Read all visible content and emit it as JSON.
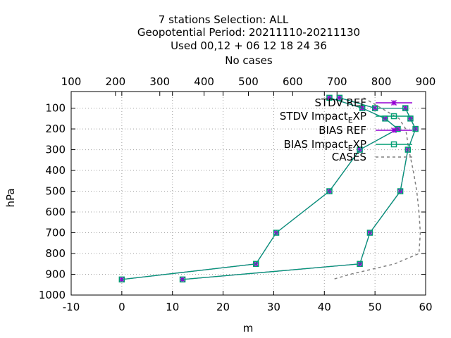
{
  "chart_data": {
    "type": "line",
    "title_lines": [
      "7 stations Selection: ALL",
      "Geopotential  Period: 20211110-20211130",
      "Used  00,12  + 06 12 18 24 36",
      "No cases"
    ],
    "xlabel": "m",
    "ylabel": "hPa",
    "xlim": [
      -10,
      60
    ],
    "ylim": [
      1000,
      20
    ],
    "x2lim": [
      100,
      900
    ],
    "x_ticks": [
      "-10",
      "0",
      "10",
      "20",
      "30",
      "40",
      "50",
      "60"
    ],
    "y_ticks": [
      "100",
      "200",
      "300",
      "400",
      "500",
      "600",
      "700",
      "800",
      "900",
      "1000"
    ],
    "x2_ticks": [
      "100",
      "200",
      "300",
      "400",
      "500",
      "600",
      "700",
      "800",
      "900"
    ],
    "grid": true,
    "legend_position": "top-right",
    "series": [
      {
        "name": "STDV REF",
        "color": "#9400d3",
        "marker": "star",
        "x": [
          43,
          50,
          56,
          57,
          58,
          56.5,
          55,
          49,
          47,
          12
        ],
        "y": [
          50,
          100,
          100,
          150,
          200,
          300,
          500,
          700,
          850,
          925
        ]
      },
      {
        "name": "STDV Impact_EXP",
        "legend_main": "STDV Impact",
        "legend_sub": "E",
        "legend_tail": "XP",
        "color": "#009e73",
        "marker": "square",
        "x": [
          43,
          50,
          56,
          57,
          58,
          56.5,
          55,
          49,
          47,
          12
        ],
        "y": [
          50,
          100,
          100,
          150,
          200,
          300,
          500,
          700,
          850,
          925
        ]
      },
      {
        "name": "BIAS REF",
        "color": "#9400d3",
        "marker": "star",
        "x": [
          41,
          47.5,
          52,
          54.5,
          47,
          41,
          30.5,
          26.5,
          0
        ],
        "y": [
          50,
          100,
          150,
          200,
          300,
          500,
          700,
          850,
          925
        ]
      },
      {
        "name": "BIAS Impact_EXP",
        "legend_main": "BIAS Impact",
        "legend_sub": "E",
        "legend_tail": "XP",
        "color": "#009e73",
        "marker": "square",
        "x": [
          41,
          47.5,
          52,
          54.5,
          47,
          41,
          30.5,
          26.5,
          0
        ],
        "y": [
          50,
          100,
          150,
          200,
          300,
          500,
          700,
          850,
          925
        ]
      },
      {
        "name": "CASES",
        "color": "#808080",
        "dashed": true,
        "axis": "x2",
        "x": [
          760,
          800,
          840,
          855,
          862,
          872,
          880,
          885,
          888,
          885,
          830,
          730,
          690
        ],
        "y": [
          50,
          100,
          150,
          200,
          300,
          400,
          500,
          600,
          700,
          800,
          850,
          900,
          925
        ]
      }
    ]
  }
}
